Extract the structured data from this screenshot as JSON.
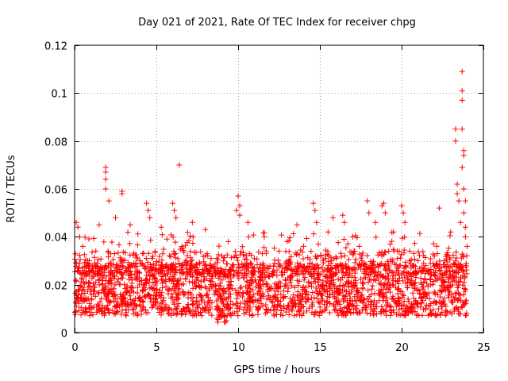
{
  "chart_data": {
    "type": "scatter",
    "title": "Day 021 of 2021, Rate Of TEC Index for receiver chpg",
    "xlabel": "GPS time / hours",
    "ylabel": "ROTI / TECUs",
    "xlim": [
      0,
      25
    ],
    "ylim": [
      0,
      0.12
    ],
    "x_ticks": [
      0,
      5,
      10,
      15,
      20,
      25
    ],
    "x_tick_labels": [
      "0",
      "5",
      "10",
      "15",
      "20",
      "25"
    ],
    "y_ticks": [
      0,
      0.02,
      0.04,
      0.06,
      0.08,
      0.1,
      0.12
    ],
    "y_tick_labels": [
      "0",
      "0.02",
      "0.04",
      "0.06",
      "0.08",
      "0.1",
      "0.12"
    ],
    "grid": true,
    "marker": "plus",
    "color": "#ff0000",
    "series": [
      {
        "name": "ROTI",
        "note": "dense band of roughly 0.005–0.03 TECUs across 0–24 h; representative prominent points listed",
        "points": [
          [
            0.1,
            0.046
          ],
          [
            0.2,
            0.044
          ],
          [
            0.3,
            0.04
          ],
          [
            0.5,
            0.036
          ],
          [
            0.9,
            0.03
          ],
          [
            1.3,
            0.034
          ],
          [
            1.5,
            0.045
          ],
          [
            1.9,
            0.069
          ],
          [
            1.9,
            0.067
          ],
          [
            1.9,
            0.064
          ],
          [
            1.9,
            0.06
          ],
          [
            2.1,
            0.055
          ],
          [
            2.5,
            0.048
          ],
          [
            2.9,
            0.059
          ],
          [
            2.9,
            0.058
          ],
          [
            3.4,
            0.045
          ],
          [
            4.4,
            0.054
          ],
          [
            4.5,
            0.051
          ],
          [
            4.6,
            0.048
          ],
          [
            5.3,
            0.044
          ],
          [
            6.0,
            0.054
          ],
          [
            6.1,
            0.051
          ],
          [
            6.2,
            0.048
          ],
          [
            6.4,
            0.07
          ],
          [
            7.2,
            0.046
          ],
          [
            8.0,
            0.043
          ],
          [
            8.6,
            0.025
          ],
          [
            8.7,
            0.006
          ],
          [
            9.4,
            0.038
          ],
          [
            9.9,
            0.051
          ],
          [
            10.0,
            0.057
          ],
          [
            10.1,
            0.053
          ],
          [
            10.1,
            0.049
          ],
          [
            10.6,
            0.046
          ],
          [
            11.6,
            0.04
          ],
          [
            12.5,
            0.034
          ],
          [
            13.0,
            0.038
          ],
          [
            13.6,
            0.045
          ],
          [
            14.0,
            0.036
          ],
          [
            14.6,
            0.054
          ],
          [
            14.7,
            0.051
          ],
          [
            14.8,
            0.046
          ],
          [
            15.5,
            0.042
          ],
          [
            15.8,
            0.048
          ],
          [
            16.4,
            0.049
          ],
          [
            16.5,
            0.046
          ],
          [
            17.0,
            0.04
          ],
          [
            17.4,
            0.036
          ],
          [
            17.9,
            0.055
          ],
          [
            18.0,
            0.05
          ],
          [
            18.4,
            0.046
          ],
          [
            18.8,
            0.053
          ],
          [
            18.9,
            0.054
          ],
          [
            19.0,
            0.05
          ],
          [
            19.5,
            0.042
          ],
          [
            20.0,
            0.053
          ],
          [
            20.1,
            0.05
          ],
          [
            20.2,
            0.046
          ],
          [
            20.5,
            0.034
          ],
          [
            21.0,
            0.03
          ],
          [
            21.6,
            0.026
          ],
          [
            22.0,
            0.032
          ],
          [
            22.3,
            0.052
          ],
          [
            22.6,
            0.03
          ],
          [
            23.0,
            0.042
          ],
          [
            23.3,
            0.085
          ],
          [
            23.3,
            0.08
          ],
          [
            23.4,
            0.062
          ],
          [
            23.4,
            0.058
          ],
          [
            23.5,
            0.055
          ],
          [
            23.6,
            0.046
          ],
          [
            23.7,
            0.109
          ],
          [
            23.7,
            0.101
          ],
          [
            23.7,
            0.097
          ],
          [
            23.7,
            0.085
          ],
          [
            23.8,
            0.076
          ],
          [
            23.8,
            0.074
          ],
          [
            23.7,
            0.069
          ],
          [
            23.8,
            0.06
          ],
          [
            23.9,
            0.055
          ],
          [
            23.8,
            0.05
          ],
          [
            23.9,
            0.044
          ],
          [
            23.9,
            0.04
          ],
          [
            24.0,
            0.036
          ]
        ]
      }
    ]
  }
}
